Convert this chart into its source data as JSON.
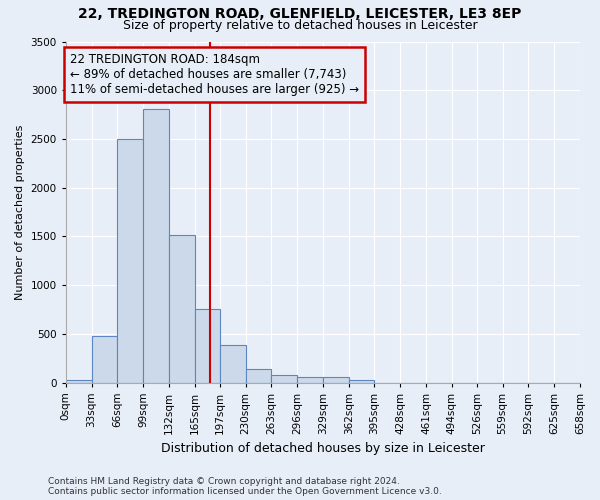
{
  "title1": "22, TREDINGTON ROAD, GLENFIELD, LEICESTER, LE3 8EP",
  "title2": "Size of property relative to detached houses in Leicester",
  "xlabel": "Distribution of detached houses by size in Leicester",
  "ylabel": "Number of detached properties",
  "bin_edges": [
    0,
    33,
    66,
    99,
    132,
    165,
    197,
    230,
    263,
    296,
    329,
    362,
    395,
    428,
    461,
    494,
    526,
    559,
    592,
    625,
    658
  ],
  "bin_labels": [
    "0sqm",
    "33sqm",
    "66sqm",
    "99sqm",
    "132sqm",
    "165sqm",
    "197sqm",
    "230sqm",
    "263sqm",
    "296sqm",
    "329sqm",
    "362sqm",
    "395sqm",
    "428sqm",
    "461sqm",
    "494sqm",
    "526sqm",
    "559sqm",
    "592sqm",
    "625sqm",
    "658sqm"
  ],
  "bar_heights": [
    25,
    475,
    2500,
    2810,
    1510,
    750,
    390,
    140,
    75,
    60,
    55,
    25,
    0,
    0,
    0,
    0,
    0,
    0,
    0,
    0
  ],
  "bar_color": "#ccd9ea",
  "bar_edge_color": "#5b86c0",
  "property_size": 184,
  "vline_color": "#cc0000",
  "ylim": [
    0,
    3500
  ],
  "yticks": [
    0,
    500,
    1000,
    1500,
    2000,
    2500,
    3000,
    3500
  ],
  "annotation_line1": "22 TREDINGTON ROAD: 184sqm",
  "annotation_line2": "← 89% of detached houses are smaller (7,743)",
  "annotation_line3": "11% of semi-detached houses are larger (925) →",
  "annotation_box_color": "#cc0000",
  "footnote1": "Contains HM Land Registry data © Crown copyright and database right 2024.",
  "footnote2": "Contains public sector information licensed under the Open Government Licence v3.0.",
  "bg_color": "#e8eef8",
  "grid_color": "#ffffff",
  "title1_fontsize": 10,
  "title2_fontsize": 9,
  "ann_fontsize": 8.5,
  "ylabel_fontsize": 8,
  "xlabel_fontsize": 9,
  "footnote_fontsize": 6.5,
  "tick_fontsize": 7.5
}
